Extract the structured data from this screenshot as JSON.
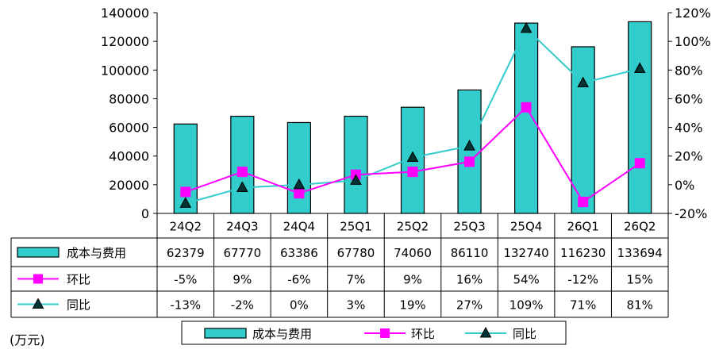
{
  "colors": {
    "bar_fill": "#33CCCC",
    "bar_stroke": "#000000",
    "qoq_line": "#FF00FF",
    "yoy_line": "#33CCCC",
    "yoy_marker": "#003333"
  },
  "unit_label": "(万元)",
  "chart_data": {
    "type": "bar",
    "categories": [
      "24Q2",
      "24Q3",
      "24Q4",
      "25Q1",
      "25Q2",
      "25Q3",
      "25Q4",
      "26Q1",
      "26Q2"
    ],
    "series": [
      {
        "name": "成本与费用",
        "kind": "bar",
        "axis": "left",
        "values": [
          62379,
          67770,
          63386,
          67780,
          74060,
          86110,
          132740,
          116230,
          133694
        ],
        "labels": [
          "62379",
          "67770",
          "63386",
          "67780",
          "74060",
          "86110",
          "132740",
          "116230",
          "133694"
        ]
      },
      {
        "name": "环比",
        "kind": "line",
        "axis": "right",
        "marker": "square",
        "values": [
          -5,
          9,
          -6,
          7,
          9,
          16,
          54,
          -12,
          15
        ],
        "labels": [
          "-5%",
          "9%",
          "-6%",
          "7%",
          "9%",
          "16%",
          "54%",
          "-12%",
          "15%"
        ]
      },
      {
        "name": "同比",
        "kind": "line",
        "axis": "right",
        "marker": "triangle",
        "values": [
          -13,
          -2,
          0,
          3,
          19,
          27,
          109,
          71,
          81
        ],
        "labels": [
          "-13%",
          "-2%",
          "0%",
          "3%",
          "19%",
          "27%",
          "109%",
          "71%",
          "81%"
        ]
      }
    ],
    "y_left": {
      "lim": [
        0,
        140000
      ],
      "ticks": [
        "0",
        "20000",
        "40000",
        "60000",
        "80000",
        "100000",
        "120000",
        "140000"
      ]
    },
    "y_right": {
      "lim": [
        -20,
        120
      ],
      "ticks": [
        "-20%",
        "0%",
        "20%",
        "40%",
        "60%",
        "80%",
        "100%",
        "120%"
      ]
    },
    "grid": false,
    "legend": "bottom",
    "data_table": true
  }
}
